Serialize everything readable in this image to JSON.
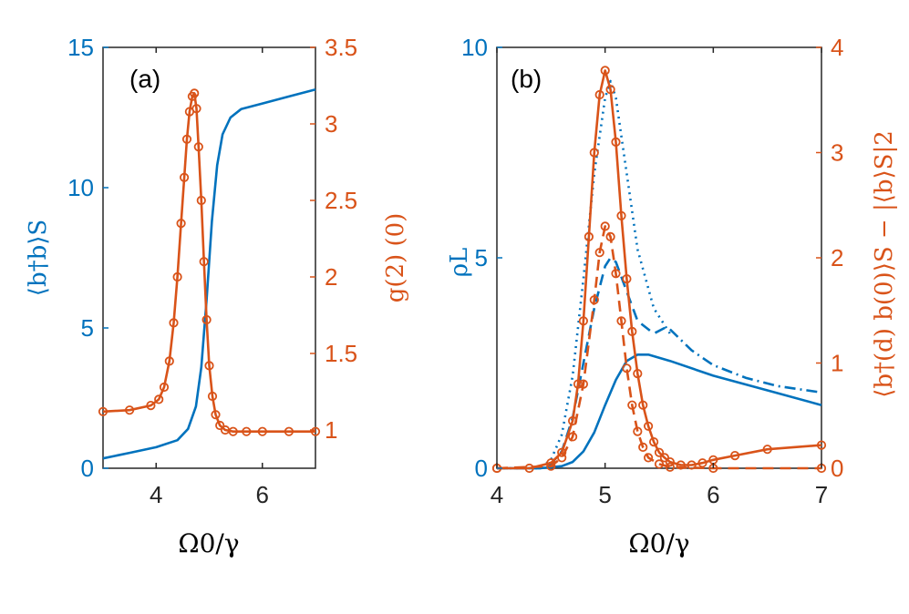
{
  "colors": {
    "blue": "#0072BD",
    "orange": "#D95319",
    "axis": "#262626"
  },
  "chart_data": [
    {
      "type": "line",
      "panel_label": "(a)",
      "xlabel": "Ω0/γ",
      "xlim": [
        3,
        7
      ],
      "xticks": [
        4,
        6
      ],
      "ylabel_left": "⟨b†b⟩S",
      "ylim_left": [
        0,
        15
      ],
      "yticks_left": [
        0,
        5,
        10,
        15
      ],
      "ylabel_right": "g(2) (0)",
      "ylim_right": [
        0.75,
        3.5
      ],
      "yticks_right": [
        1,
        1.5,
        2,
        2.5,
        3,
        3.5
      ],
      "yticklabels_right": [
        "1",
        "1.5",
        "2",
        "2.5",
        "3",
        "3.5"
      ],
      "series": [
        {
          "axis": "left",
          "color": "#0072BD",
          "style": "solid",
          "x": [
            3.0,
            3.5,
            4.0,
            4.4,
            4.6,
            4.75,
            4.85,
            4.95,
            5.05,
            5.15,
            5.25,
            5.4,
            5.6,
            6.0,
            6.5,
            7.0
          ],
          "y": [
            0.35,
            0.55,
            0.75,
            1.0,
            1.4,
            2.2,
            3.6,
            6.0,
            8.8,
            10.8,
            11.9,
            12.5,
            12.8,
            13.0,
            13.25,
            13.5
          ]
        },
        {
          "axis": "right",
          "color": "#D95319",
          "style": "solid",
          "markers": "circle",
          "x": [
            3.0,
            3.5,
            3.9,
            4.05,
            4.15,
            4.25,
            4.33,
            4.4,
            4.47,
            4.53,
            4.58,
            4.63,
            4.68,
            4.72,
            4.76,
            4.8,
            4.85,
            4.9,
            4.95,
            5.0,
            5.06,
            5.12,
            5.2,
            5.3,
            5.45,
            5.7,
            6.0,
            6.5,
            7.0
          ],
          "y": [
            1.12,
            1.13,
            1.16,
            1.2,
            1.28,
            1.45,
            1.7,
            2.0,
            2.35,
            2.65,
            2.9,
            3.08,
            3.18,
            3.2,
            3.1,
            2.85,
            2.5,
            2.1,
            1.72,
            1.42,
            1.22,
            1.1,
            1.03,
            1.0,
            0.99,
            0.99,
            0.99,
            0.99,
            0.99
          ]
        }
      ]
    },
    {
      "type": "line",
      "panel_label": "(b)",
      "xlabel": "Ω0/γ",
      "xlim": [
        4,
        7
      ],
      "xticks": [
        4,
        5,
        6,
        7
      ],
      "ylabel_left": "ρL",
      "ylim_left": [
        0,
        10
      ],
      "yticks_left": [
        0,
        5,
        10
      ],
      "ylabel_right": "⟨b†(d) b(0)⟩S − |⟨b⟩S|2",
      "ylim_right": [
        0,
        4
      ],
      "yticks_right": [
        0,
        1,
        2,
        3,
        4
      ],
      "yticklabels_right": [
        "0",
        "1",
        "2",
        "3",
        "4"
      ],
      "series": [
        {
          "axis": "left",
          "color": "#0072BD",
          "style": "solid",
          "x": [
            4.0,
            4.4,
            4.6,
            4.7,
            4.8,
            4.9,
            5.0,
            5.1,
            5.2,
            5.3,
            5.4,
            5.6,
            6.0,
            6.5,
            7.0
          ],
          "y": [
            0,
            0,
            0.05,
            0.15,
            0.4,
            0.85,
            1.5,
            2.1,
            2.55,
            2.7,
            2.7,
            2.55,
            2.2,
            1.85,
            1.5
          ]
        },
        {
          "axis": "left",
          "color": "#0072BD",
          "style": "dashed",
          "x": [
            4.0,
            4.4,
            4.5,
            4.6,
            4.7,
            4.8,
            4.9,
            5.0,
            5.05,
            5.1,
            5.2,
            5.3,
            5.45,
            5.6
          ],
          "y": [
            0,
            0,
            0.1,
            0.4,
            1.2,
            2.5,
            3.8,
            4.8,
            5.0,
            4.9,
            4.2,
            3.5,
            3.2,
            3.4
          ]
        },
        {
          "axis": "left",
          "color": "#0072BD",
          "style": "dotted",
          "x": [
            4.0,
            4.4,
            4.5,
            4.6,
            4.7,
            4.8,
            4.9,
            5.0,
            5.05,
            5.1,
            5.2,
            5.3,
            5.45,
            5.6
          ],
          "y": [
            0,
            0,
            0.2,
            0.8,
            2.2,
            4.5,
            7.0,
            8.8,
            9.2,
            8.8,
            7.0,
            5.2,
            3.8,
            3.2
          ]
        },
        {
          "axis": "left",
          "color": "#0072BD",
          "style": "dashdot",
          "x": [
            5.6,
            5.8,
            6.0,
            6.3,
            6.6,
            7.0
          ],
          "y": [
            3.3,
            2.8,
            2.45,
            2.15,
            1.95,
            1.8
          ]
        },
        {
          "axis": "right",
          "color": "#D95319",
          "style": "solid",
          "markers": "circle",
          "x": [
            4.0,
            4.3,
            4.5,
            4.6,
            4.7,
            4.75,
            4.8,
            4.85,
            4.9,
            4.95,
            5.0,
            5.05,
            5.1,
            5.15,
            5.2,
            5.25,
            5.3,
            5.35,
            5.4,
            5.45,
            5.5,
            5.55,
            5.6,
            5.7,
            5.8,
            5.9,
            6.0,
            6.2,
            6.5,
            7.0
          ],
          "y": [
            0,
            0,
            0.05,
            0.15,
            0.45,
            0.8,
            1.4,
            2.2,
            3.0,
            3.55,
            3.78,
            3.6,
            3.1,
            2.4,
            1.8,
            1.3,
            0.9,
            0.6,
            0.4,
            0.25,
            0.15,
            0.1,
            0.06,
            0.03,
            0.03,
            0.05,
            0.08,
            0.12,
            0.18,
            0.22
          ]
        },
        {
          "axis": "right",
          "color": "#D95319",
          "style": "dashed",
          "markers": "circle",
          "x": [
            4.0,
            4.5,
            4.6,
            4.7,
            4.8,
            4.9,
            4.95,
            5.0,
            5.05,
            5.1,
            5.15,
            5.2,
            5.25,
            5.3,
            5.35,
            5.4,
            5.5,
            5.6,
            6.0,
            7.0
          ],
          "y": [
            0,
            0.02,
            0.1,
            0.3,
            0.8,
            1.6,
            2.05,
            2.3,
            2.2,
            1.85,
            1.4,
            0.95,
            0.6,
            0.35,
            0.2,
            0.1,
            0.04,
            0.01,
            0,
            0
          ]
        }
      ]
    }
  ]
}
